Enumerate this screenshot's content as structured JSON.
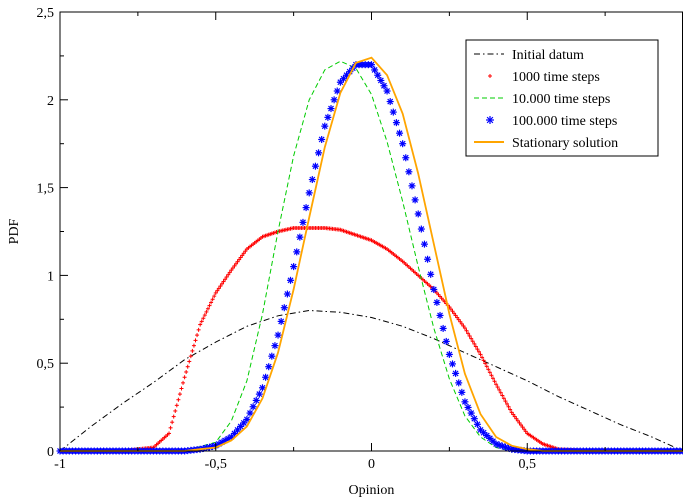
{
  "chart_data": {
    "type": "line",
    "xlabel": "Opinion",
    "ylabel": "PDF",
    "xlim": [
      -1,
      1
    ],
    "ylim": [
      0,
      2.5
    ],
    "xticks": [
      -1,
      -0.5,
      0,
      0.5
    ],
    "xtick_labels": [
      "-1",
      "-0,5",
      "0",
      "0,5"
    ],
    "yticks": [
      0,
      0.5,
      1,
      1.5,
      2,
      2.5
    ],
    "ytick_labels": [
      "0",
      "0,5",
      "1",
      "1,5",
      "2",
      "2,5"
    ],
    "grid": false,
    "legend_position": "top-right",
    "series": [
      {
        "name": "Initial datum",
        "style": "dash-dot",
        "color": "#000000",
        "x": [
          -1,
          -0.9,
          -0.8,
          -0.7,
          -0.6,
          -0.5,
          -0.4,
          -0.3,
          -0.2,
          -0.1,
          0,
          0.1,
          0.2,
          0.3,
          0.4,
          0.5,
          0.6,
          0.7,
          0.8,
          0.9,
          1
        ],
        "y": [
          0.0,
          0.14,
          0.27,
          0.39,
          0.52,
          0.62,
          0.71,
          0.77,
          0.8,
          0.79,
          0.76,
          0.71,
          0.64,
          0.56,
          0.48,
          0.4,
          0.31,
          0.23,
          0.15,
          0.08,
          0.0
        ]
      },
      {
        "name": "1000 time steps",
        "style": "plus-markers",
        "color": "#ff0000",
        "x": [
          -1,
          -0.8,
          -0.7,
          -0.65,
          -0.6,
          -0.55,
          -0.5,
          -0.45,
          -0.4,
          -0.35,
          -0.3,
          -0.25,
          -0.2,
          -0.15,
          -0.1,
          -0.05,
          0,
          0.05,
          0.1,
          0.15,
          0.2,
          0.25,
          0.3,
          0.35,
          0.4,
          0.45,
          0.5,
          0.55,
          0.6,
          0.7,
          0.8,
          0.9,
          1
        ],
        "y": [
          0,
          0,
          0.02,
          0.1,
          0.42,
          0.72,
          0.9,
          1.03,
          1.15,
          1.22,
          1.25,
          1.27,
          1.27,
          1.27,
          1.26,
          1.23,
          1.2,
          1.15,
          1.08,
          1.0,
          0.92,
          0.82,
          0.7,
          0.55,
          0.38,
          0.22,
          0.1,
          0.04,
          0.01,
          0,
          0,
          0,
          0
        ]
      },
      {
        "name": "10.000 time steps",
        "style": "dashed",
        "color": "#00cc00",
        "x": [
          -1,
          -0.6,
          -0.5,
          -0.45,
          -0.4,
          -0.35,
          -0.3,
          -0.25,
          -0.2,
          -0.15,
          -0.1,
          -0.05,
          0,
          0.05,
          0.1,
          0.15,
          0.2,
          0.25,
          0.3,
          0.35,
          0.4,
          0.45,
          0.5,
          0.6,
          1
        ],
        "y": [
          0,
          0,
          0.05,
          0.17,
          0.4,
          0.78,
          1.25,
          1.68,
          2.0,
          2.17,
          2.22,
          2.18,
          2.03,
          1.76,
          1.42,
          1.05,
          0.7,
          0.41,
          0.2,
          0.08,
          0.02,
          0,
          0,
          0,
          0
        ]
      },
      {
        "name": "100.000 time steps",
        "style": "star-markers",
        "color": "#0000ff",
        "x": [
          -1,
          -0.6,
          -0.55,
          -0.5,
          -0.45,
          -0.4,
          -0.35,
          -0.3,
          -0.25,
          -0.2,
          -0.15,
          -0.1,
          -0.05,
          0,
          0.05,
          0.1,
          0.15,
          0.2,
          0.25,
          0.3,
          0.35,
          0.4,
          0.45,
          0.5,
          0.55,
          0.6,
          1
        ],
        "y": [
          0,
          0,
          0.01,
          0.03,
          0.08,
          0.18,
          0.36,
          0.66,
          1.05,
          1.47,
          1.85,
          2.1,
          2.2,
          2.2,
          2.05,
          1.75,
          1.35,
          0.92,
          0.55,
          0.28,
          0.12,
          0.04,
          0.01,
          0,
          0,
          0,
          0
        ]
      },
      {
        "name": "Stationary solution",
        "style": "solid",
        "color": "#ffa500",
        "x": [
          -1,
          -0.6,
          -0.55,
          -0.5,
          -0.45,
          -0.4,
          -0.35,
          -0.3,
          -0.25,
          -0.2,
          -0.15,
          -0.1,
          -0.05,
          0,
          0.05,
          0.1,
          0.15,
          0.2,
          0.25,
          0.3,
          0.35,
          0.4,
          0.45,
          0.5,
          0.55,
          0.6,
          1
        ],
        "y": [
          0,
          0,
          0.01,
          0.02,
          0.06,
          0.14,
          0.3,
          0.56,
          0.92,
          1.33,
          1.73,
          2.04,
          2.21,
          2.24,
          2.14,
          1.92,
          1.58,
          1.18,
          0.78,
          0.44,
          0.21,
          0.08,
          0.03,
          0.01,
          0,
          0,
          0
        ]
      }
    ]
  }
}
